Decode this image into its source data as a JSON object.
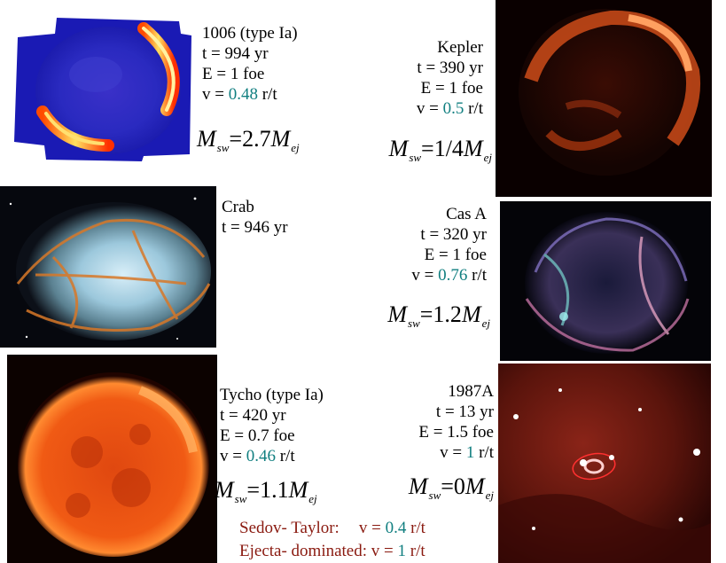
{
  "remnants": {
    "sn1006": {
      "name": "1006 (type Ia)",
      "t": "t = 994 yr",
      "E": "E = 1 foe",
      "v_pre": "v = ",
      "v_val": "0.48",
      "v_post": " r/t",
      "m_pre": "M",
      "m_sub1": "sw",
      "m_eq": "=2.7",
      "m_m2": "M",
      "m_sub2": "ej"
    },
    "kepler": {
      "name": "Kepler",
      "t": "t = 390 yr",
      "E": "E = 1 foe",
      "v_pre": "v = ",
      "v_val": "0.5",
      "v_post": " r/t",
      "m_pre": "M",
      "m_sub1": "sw",
      "m_eq": "=1/4",
      "m_m2": "M",
      "m_sub2": "ej"
    },
    "crab": {
      "name": "Crab",
      "t": "t = 946 yr"
    },
    "casa": {
      "name": "Cas A",
      "t": "t = 320 yr",
      "E": "E = 1 foe",
      "v_pre": "v = ",
      "v_val": "0.76",
      "v_post": " r/t",
      "m_pre": "M",
      "m_sub1": "sw",
      "m_eq": "=1.2",
      "m_m2": "M",
      "m_sub2": "ej"
    },
    "tycho": {
      "name": "Tycho  (type Ia)",
      "t": "t = 420 yr",
      "E": "E = 0.7 foe",
      "v_pre": "v = ",
      "v_val": "0.46",
      "v_post": " r/t",
      "m_pre": "M",
      "m_sub1": "sw",
      "m_eq": "=1.1",
      "m_m2": "M",
      "m_sub2": "ej"
    },
    "sn1987a": {
      "name": "1987A",
      "t": "t = 13 yr",
      "E": "E = 1.5 foe",
      "v_pre": "v = ",
      "v_val": "1",
      "v_post": " r/t",
      "m_pre": "M",
      "m_sub1": "sw",
      "m_eq": "=0",
      "m_m2": "M",
      "m_sub2": "ej"
    }
  },
  "footer": {
    "sedov_label": "Sedov- Taylor:",
    "sedov_v_pre": "v = ",
    "sedov_v_val": "0.4",
    "sedov_v_post": " r/t",
    "ejecta_label": "Ejecta- dominated: v = ",
    "ejecta_v_val": "1",
    "ejecta_v_post": " r/t"
  },
  "colors": {
    "teal": "#117f80",
    "dark_red": "#8a1a10"
  }
}
